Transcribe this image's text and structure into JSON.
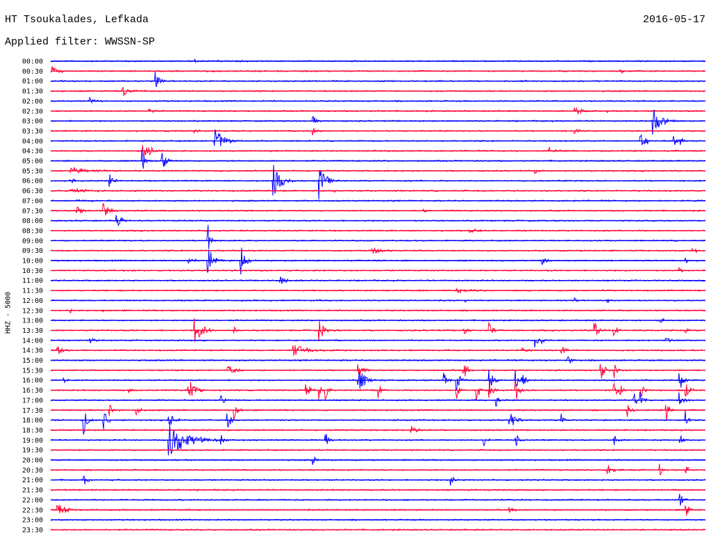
{
  "header": {
    "station": "HT Tsoukalades, Lefkada",
    "date": "2016-05-17",
    "filter": "Applied filter: WWSSN-SP"
  },
  "chart_data": {
    "type": "line",
    "title": "HT Tsoukalades, Lefkada",
    "ylabel": "HHZ - 5000",
    "row_labels": [
      "00:00",
      "00:30",
      "01:00",
      "01:30",
      "02:00",
      "02:30",
      "03:00",
      "03:30",
      "04:00",
      "04:30",
      "05:00",
      "05:30",
      "06:00",
      "06:30",
      "07:00",
      "07:30",
      "08:00",
      "08:30",
      "09:00",
      "09:30",
      "10:00",
      "10:30",
      "11:00",
      "11:30",
      "12:00",
      "12:30",
      "13:00",
      "13:30",
      "14:00",
      "14:30",
      "15:00",
      "15:30",
      "16:00",
      "16:30",
      "17:00",
      "17:30",
      "18:00",
      "18:30",
      "19:00",
      "19:30",
      "20:00",
      "20:30",
      "21:00",
      "21:30",
      "22:00",
      "22:30",
      "23:00",
      "23:30"
    ],
    "colors": [
      "#0000ff",
      "#ff0033"
    ],
    "grid": false,
    "events": [
      {
        "row": 0,
        "t": 0.22,
        "a": 3,
        "d": 0.003
      },
      {
        "row": 0,
        "t": 0.29,
        "a": 4,
        "d": 0.003
      },
      {
        "row": 1,
        "t": 0.0,
        "a": 10,
        "d": 0.01
      },
      {
        "row": 1,
        "t": 0.87,
        "a": 5,
        "d": 0.005
      },
      {
        "row": 2,
        "t": 0.16,
        "a": 14,
        "d": 0.006
      },
      {
        "row": 3,
        "t": 0.11,
        "a": 10,
        "d": 0.008
      },
      {
        "row": 4,
        "t": 0.06,
        "a": 5,
        "d": 0.006
      },
      {
        "row": 5,
        "t": 0.15,
        "a": 5,
        "d": 0.006
      },
      {
        "row": 5,
        "t": 0.8,
        "a": 8,
        "d": 0.008
      },
      {
        "row": 5,
        "t": 0.85,
        "a": 3,
        "d": 0.004
      },
      {
        "row": 6,
        "t": 0.4,
        "a": 14,
        "d": 0.004
      },
      {
        "row": 6,
        "t": 0.92,
        "a": 20,
        "d": 0.012
      },
      {
        "row": 7,
        "t": 0.22,
        "a": 3,
        "d": 0.012
      },
      {
        "row": 7,
        "t": 0.4,
        "a": 20,
        "d": 0.004
      },
      {
        "row": 7,
        "t": 0.8,
        "a": 6,
        "d": 0.006
      },
      {
        "row": 8,
        "t": 0.25,
        "a": 22,
        "d": 0.012
      },
      {
        "row": 8,
        "t": 0.9,
        "a": 15,
        "d": 0.007
      },
      {
        "row": 8,
        "t": 0.95,
        "a": 12,
        "d": 0.004
      },
      {
        "row": 8,
        "t": 0.96,
        "a": 12,
        "d": 0.004
      },
      {
        "row": 9,
        "t": 0.14,
        "a": 12,
        "d": 0.014
      },
      {
        "row": 9,
        "t": 0.76,
        "a": 7,
        "d": 0.007
      },
      {
        "row": 10,
        "t": 0.14,
        "a": 20,
        "d": 0.004
      },
      {
        "row": 10,
        "t": 0.17,
        "a": 20,
        "d": 0.005
      },
      {
        "row": 11,
        "t": 0.03,
        "a": 6,
        "d": 0.025
      },
      {
        "row": 11,
        "t": 0.74,
        "a": 4,
        "d": 0.005
      },
      {
        "row": 12,
        "t": 0.03,
        "a": 4,
        "d": 0.01
      },
      {
        "row": 12,
        "t": 0.09,
        "a": 12,
        "d": 0.005
      },
      {
        "row": 12,
        "t": 0.34,
        "a": 28,
        "d": 0.009
      },
      {
        "row": 12,
        "t": 0.41,
        "a": 28,
        "d": 0.008
      },
      {
        "row": 13,
        "t": 0.03,
        "a": 5,
        "d": 0.02
      },
      {
        "row": 13,
        "t": 0.43,
        "a": 4,
        "d": 0.005
      },
      {
        "row": 14,
        "t": 0.04,
        "a": 2,
        "d": 0.02
      },
      {
        "row": 15,
        "t": 0.04,
        "a": 9,
        "d": 0.008
      },
      {
        "row": 15,
        "t": 0.08,
        "a": 12,
        "d": 0.009
      },
      {
        "row": 15,
        "t": 0.57,
        "a": 3,
        "d": 0.004
      },
      {
        "row": 16,
        "t": 0.1,
        "a": 10,
        "d": 0.009
      },
      {
        "row": 17,
        "t": 0.64,
        "a": 4,
        "d": 0.01
      },
      {
        "row": 18,
        "t": 0.24,
        "a": 25,
        "d": 0.004
      },
      {
        "row": 19,
        "t": 0.49,
        "a": 6,
        "d": 0.012
      },
      {
        "row": 19,
        "t": 0.98,
        "a": 10,
        "d": 0.005
      },
      {
        "row": 20,
        "t": 0.21,
        "a": 5,
        "d": 0.008
      },
      {
        "row": 20,
        "t": 0.24,
        "a": 22,
        "d": 0.009
      },
      {
        "row": 20,
        "t": 0.29,
        "a": 24,
        "d": 0.006
      },
      {
        "row": 20,
        "t": 0.75,
        "a": 8,
        "d": 0.006
      },
      {
        "row": 20,
        "t": 0.97,
        "a": 5,
        "d": 0.004
      },
      {
        "row": 21,
        "t": 0.96,
        "a": 5,
        "d": 0.005
      },
      {
        "row": 22,
        "t": 0.35,
        "a": 8,
        "d": 0.008
      },
      {
        "row": 23,
        "t": 0.62,
        "a": 3,
        "d": 0.03
      },
      {
        "row": 24,
        "t": 0.63,
        "a": 6,
        "d": 0.003
      },
      {
        "row": 24,
        "t": 0.8,
        "a": 4,
        "d": 0.004
      },
      {
        "row": 24,
        "t": 0.85,
        "a": 4,
        "d": 0.004
      },
      {
        "row": 25,
        "t": 0.03,
        "a": 4,
        "d": 0.005
      },
      {
        "row": 25,
        "t": 0.08,
        "a": 3,
        "d": 0.004
      },
      {
        "row": 26,
        "t": 0.93,
        "a": 6,
        "d": 0.005
      },
      {
        "row": 27,
        "t": 0.22,
        "a": 18,
        "d": 0.012
      },
      {
        "row": 27,
        "t": 0.28,
        "a": 6,
        "d": 0.004
      },
      {
        "row": 27,
        "t": 0.41,
        "a": 20,
        "d": 0.006
      },
      {
        "row": 27,
        "t": 0.63,
        "a": 14,
        "d": 0.004
      },
      {
        "row": 27,
        "t": 0.67,
        "a": 12,
        "d": 0.005
      },
      {
        "row": 27,
        "t": 0.83,
        "a": 16,
        "d": 0.005
      },
      {
        "row": 27,
        "t": 0.86,
        "a": 14,
        "d": 0.004
      },
      {
        "row": 27,
        "t": 0.97,
        "a": 5,
        "d": 0.004
      },
      {
        "row": 28,
        "t": 0.06,
        "a": 5,
        "d": 0.006
      },
      {
        "row": 28,
        "t": 0.74,
        "a": 10,
        "d": 0.005
      },
      {
        "row": 28,
        "t": 0.75,
        "a": 6,
        "d": 0.004
      },
      {
        "row": 28,
        "t": 0.94,
        "a": 6,
        "d": 0.005
      },
      {
        "row": 29,
        "t": 0.01,
        "a": 7,
        "d": 0.01
      },
      {
        "row": 29,
        "t": 0.37,
        "a": 10,
        "d": 0.02
      },
      {
        "row": 29,
        "t": 0.72,
        "a": 4,
        "d": 0.01
      },
      {
        "row": 29,
        "t": 0.78,
        "a": 12,
        "d": 0.005
      },
      {
        "row": 30,
        "t": 0.79,
        "a": 8,
        "d": 0.005
      },
      {
        "row": 31,
        "t": 0.27,
        "a": 8,
        "d": 0.012
      },
      {
        "row": 31,
        "t": 0.47,
        "a": 16,
        "d": 0.006
      },
      {
        "row": 31,
        "t": 0.63,
        "a": 20,
        "d": 0.005
      },
      {
        "row": 31,
        "t": 0.84,
        "a": 18,
        "d": 0.005
      },
      {
        "row": 31,
        "t": 0.86,
        "a": 14,
        "d": 0.004
      },
      {
        "row": 32,
        "t": 0.02,
        "a": 4,
        "d": 0.003
      },
      {
        "row": 32,
        "t": 0.47,
        "a": 22,
        "d": 0.008
      },
      {
        "row": 32,
        "t": 0.6,
        "a": 14,
        "d": 0.005
      },
      {
        "row": 32,
        "t": 0.62,
        "a": 18,
        "d": 0.006
      },
      {
        "row": 32,
        "t": 0.67,
        "a": 20,
        "d": 0.005
      },
      {
        "row": 32,
        "t": 0.71,
        "a": 14,
        "d": 0.005
      },
      {
        "row": 32,
        "t": 0.72,
        "a": 14,
        "d": 0.005
      },
      {
        "row": 32,
        "t": 0.96,
        "a": 22,
        "d": 0.005
      },
      {
        "row": 33,
        "t": 0.12,
        "a": 5,
        "d": 0.006
      },
      {
        "row": 33,
        "t": 0.21,
        "a": 20,
        "d": 0.008
      },
      {
        "row": 33,
        "t": 0.39,
        "a": 22,
        "d": 0.004
      },
      {
        "row": 33,
        "t": 0.41,
        "a": 14,
        "d": 0.004
      },
      {
        "row": 33,
        "t": 0.42,
        "a": 14,
        "d": 0.004
      },
      {
        "row": 33,
        "t": 0.5,
        "a": 12,
        "d": 0.004
      },
      {
        "row": 33,
        "t": 0.62,
        "a": 14,
        "d": 0.004
      },
      {
        "row": 33,
        "t": 0.65,
        "a": 16,
        "d": 0.005
      },
      {
        "row": 33,
        "t": 0.67,
        "a": 16,
        "d": 0.005
      },
      {
        "row": 33,
        "t": 0.71,
        "a": 18,
        "d": 0.005
      },
      {
        "row": 33,
        "t": 0.86,
        "a": 12,
        "d": 0.006
      },
      {
        "row": 33,
        "t": 0.87,
        "a": 10,
        "d": 0.005
      },
      {
        "row": 33,
        "t": 0.9,
        "a": 16,
        "d": 0.005
      },
      {
        "row": 33,
        "t": 0.97,
        "a": 16,
        "d": 0.005
      },
      {
        "row": 34,
        "t": 0.26,
        "a": 14,
        "d": 0.004
      },
      {
        "row": 34,
        "t": 0.68,
        "a": 14,
        "d": 0.004
      },
      {
        "row": 34,
        "t": 0.89,
        "a": 14,
        "d": 0.005
      },
      {
        "row": 34,
        "t": 0.9,
        "a": 12,
        "d": 0.005
      },
      {
        "row": 34,
        "t": 0.96,
        "a": 12,
        "d": 0.005
      },
      {
        "row": 35,
        "t": 0.09,
        "a": 14,
        "d": 0.004
      },
      {
        "row": 35,
        "t": 0.13,
        "a": 14,
        "d": 0.004
      },
      {
        "row": 35,
        "t": 0.28,
        "a": 16,
        "d": 0.005
      },
      {
        "row": 35,
        "t": 0.88,
        "a": 12,
        "d": 0.005
      },
      {
        "row": 35,
        "t": 0.94,
        "a": 16,
        "d": 0.004
      },
      {
        "row": 36,
        "t": 0.05,
        "a": 22,
        "d": 0.005
      },
      {
        "row": 36,
        "t": 0.08,
        "a": 18,
        "d": 0.005
      },
      {
        "row": 36,
        "t": 0.18,
        "a": 14,
        "d": 0.007
      },
      {
        "row": 36,
        "t": 0.27,
        "a": 14,
        "d": 0.005
      },
      {
        "row": 36,
        "t": 0.7,
        "a": 18,
        "d": 0.008
      },
      {
        "row": 36,
        "t": 0.78,
        "a": 10,
        "d": 0.004
      },
      {
        "row": 36,
        "t": 0.97,
        "a": 14,
        "d": 0.004
      },
      {
        "row": 37,
        "t": 0.55,
        "a": 7,
        "d": 0.008
      },
      {
        "row": 38,
        "t": 0.18,
        "a": 28,
        "d": 0.025
      },
      {
        "row": 38,
        "t": 0.26,
        "a": 12,
        "d": 0.004
      },
      {
        "row": 38,
        "t": 0.42,
        "a": 14,
        "d": 0.004
      },
      {
        "row": 38,
        "t": 0.66,
        "a": 14,
        "d": 0.004
      },
      {
        "row": 38,
        "t": 0.71,
        "a": 14,
        "d": 0.004
      },
      {
        "row": 38,
        "t": 0.86,
        "a": 10,
        "d": 0.004
      },
      {
        "row": 38,
        "t": 0.96,
        "a": 12,
        "d": 0.005
      },
      {
        "row": 40,
        "t": 0.4,
        "a": 10,
        "d": 0.004
      },
      {
        "row": 41,
        "t": 0.85,
        "a": 8,
        "d": 0.01
      },
      {
        "row": 41,
        "t": 0.93,
        "a": 10,
        "d": 0.004
      },
      {
        "row": 41,
        "t": 0.97,
        "a": 10,
        "d": 0.004
      },
      {
        "row": 42,
        "t": 0.05,
        "a": 14,
        "d": 0.004
      },
      {
        "row": 42,
        "t": 0.61,
        "a": 12,
        "d": 0.004
      },
      {
        "row": 44,
        "t": 0.96,
        "a": 14,
        "d": 0.005
      },
      {
        "row": 45,
        "t": 0.01,
        "a": 12,
        "d": 0.01
      },
      {
        "row": 45,
        "t": 0.7,
        "a": 8,
        "d": 0.006
      },
      {
        "row": 45,
        "t": 0.97,
        "a": 12,
        "d": 0.004
      }
    ]
  }
}
